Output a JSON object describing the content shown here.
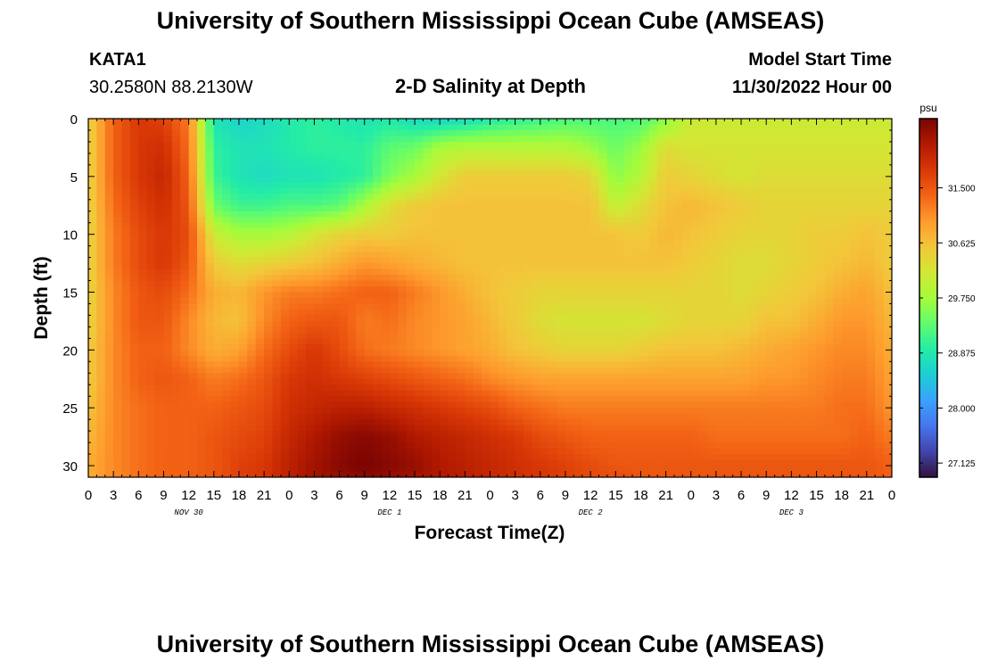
{
  "header": {
    "title": "University of Southern Mississippi Ocean Cube (AMSEAS)",
    "station": "KATA1",
    "coords": "30.2580N  88.2130W",
    "subtitle": "2-D Salinity at Depth",
    "model_start_label": "Model Start Time",
    "model_start_value": "11/30/2022 Hour 00"
  },
  "footer": {
    "title": "University of Southern Mississippi Ocean Cube (AMSEAS)"
  },
  "chart_data": {
    "type": "heatmap",
    "title": "2-D Salinity at Depth",
    "xlabel": "Forecast Time(Z)",
    "ylabel": "Depth (ft)",
    "x_unit": "hours since 11/30/2022 00Z",
    "x_range": [
      0,
      96
    ],
    "x_step": 3,
    "x_tick_labels": [
      "0",
      "3",
      "6",
      "9",
      "12",
      "15",
      "18",
      "21",
      "0",
      "3",
      "6",
      "9",
      "12",
      "15",
      "18",
      "21",
      "0",
      "3",
      "6",
      "9",
      "12",
      "15",
      "18",
      "21",
      "0",
      "3",
      "6",
      "9",
      "12",
      "15",
      "18",
      "21",
      "0"
    ],
    "day_labels": [
      {
        "text": "NOV 30",
        "hour": 12
      },
      {
        "text": "DEC 1",
        "hour": 36
      },
      {
        "text": "DEC 2",
        "hour": 60
      },
      {
        "text": "DEC 3",
        "hour": 84
      }
    ],
    "y_range": [
      0,
      31
    ],
    "y_ticks": [
      0,
      5,
      10,
      15,
      20,
      25,
      30
    ],
    "colorbar": {
      "unit": "psu",
      "ticks": [
        "31.500",
        "30.625",
        "29.750",
        "28.875",
        "28.000",
        "27.125"
      ],
      "range": [
        26.9,
        32.6
      ],
      "colors": [
        "#30123b",
        "#4145ab",
        "#4675ed",
        "#39a2fc",
        "#1bcfd4",
        "#24eca6",
        "#61fc6c",
        "#a4fc3b",
        "#d1e834",
        "#f3c63a",
        "#fe9b2d",
        "#f36315",
        "#d93806",
        "#b11901",
        "#7a0402"
      ]
    },
    "depths": [
      0,
      2.5,
      5,
      7.5,
      10,
      12.5,
      15,
      17.5,
      20,
      22.5,
      25,
      27.5,
      30,
      31
    ],
    "hours": [
      0,
      3,
      6,
      9,
      12,
      15,
      18,
      21,
      24,
      27,
      30,
      33,
      36,
      39,
      42,
      45,
      48,
      51,
      54,
      57,
      60,
      63,
      66,
      69,
      72,
      75,
      78,
      81,
      84,
      87,
      90,
      93,
      96
    ],
    "salinity": [
      [
        30.4,
        31.4,
        31.8,
        31.7,
        31.2,
        28.8,
        28.6,
        28.7,
        28.9,
        29.0,
        28.9,
        28.8,
        28.9,
        28.7,
        28.6,
        28.7,
        28.9,
        29.0,
        29.1,
        29.2,
        29.2,
        29.2,
        29.2,
        29.6,
        30.1,
        30.1,
        30.1,
        30.1,
        30.1,
        30.1,
        30.1,
        30.1,
        30.1
      ],
      [
        30.4,
        31.4,
        31.8,
        31.9,
        31.3,
        29.0,
        28.8,
        28.8,
        28.9,
        29.0,
        29.0,
        29.0,
        29.3,
        29.4,
        29.8,
        29.9,
        29.9,
        29.9,
        29.9,
        29.9,
        29.7,
        29.4,
        29.7,
        30.3,
        30.2,
        30.2,
        30.2,
        30.2,
        30.2,
        30.2,
        30.2,
        30.2,
        30.2
      ],
      [
        30.4,
        31.4,
        31.8,
        32.0,
        31.4,
        29.1,
        28.8,
        28.7,
        28.8,
        28.8,
        28.9,
        29.0,
        29.5,
        29.8,
        30.2,
        30.5,
        30.5,
        30.5,
        30.5,
        30.5,
        30.4,
        29.6,
        29.9,
        30.5,
        30.4,
        30.3,
        30.2,
        30.3,
        30.3,
        30.3,
        30.3,
        30.3,
        30.3
      ],
      [
        30.4,
        31.3,
        31.7,
        31.9,
        31.5,
        29.4,
        29.1,
        29.1,
        29.2,
        29.2,
        29.3,
        29.8,
        30.3,
        30.5,
        30.6,
        30.6,
        30.6,
        30.6,
        30.6,
        30.6,
        30.6,
        30.0,
        30.3,
        30.6,
        30.7,
        30.6,
        30.5,
        30.4,
        30.4,
        30.4,
        30.4,
        30.4,
        30.4
      ],
      [
        30.4,
        31.2,
        31.6,
        31.8,
        31.6,
        30.1,
        29.8,
        29.8,
        29.9,
        30.2,
        30.4,
        30.5,
        30.5,
        30.6,
        30.6,
        30.6,
        30.6,
        30.6,
        30.6,
        30.6,
        30.6,
        30.6,
        30.5,
        30.7,
        30.6,
        30.5,
        30.4,
        30.4,
        30.4,
        30.5,
        30.5,
        30.6,
        30.5
      ],
      [
        30.4,
        31.2,
        31.6,
        31.8,
        31.5,
        30.5,
        30.3,
        30.4,
        30.5,
        30.6,
        30.8,
        31.0,
        30.9,
        30.8,
        30.7,
        30.6,
        30.6,
        30.6,
        30.6,
        30.6,
        30.6,
        30.6,
        30.6,
        30.6,
        30.5,
        30.4,
        30.3,
        30.3,
        30.4,
        30.5,
        30.6,
        30.7,
        30.5
      ],
      [
        30.4,
        31.1,
        31.5,
        31.6,
        31.3,
        30.8,
        30.7,
        31.0,
        31.2,
        31.2,
        31.3,
        31.4,
        31.4,
        31.2,
        31.0,
        30.8,
        30.6,
        30.5,
        30.4,
        30.4,
        30.4,
        30.4,
        30.4,
        30.4,
        30.4,
        30.4,
        30.3,
        30.4,
        30.5,
        30.6,
        30.8,
        30.9,
        30.6
      ],
      [
        30.4,
        31.1,
        31.5,
        31.5,
        31.1,
        30.7,
        30.6,
        31.1,
        31.4,
        31.5,
        31.5,
        31.2,
        31.3,
        31.1,
        31.0,
        30.9,
        30.7,
        30.5,
        30.3,
        30.2,
        30.2,
        30.2,
        30.2,
        30.3,
        30.4,
        30.4,
        30.4,
        30.6,
        30.6,
        30.8,
        31.0,
        31.0,
        30.7
      ],
      [
        30.5,
        31.1,
        31.4,
        31.4,
        31.1,
        30.8,
        30.9,
        31.3,
        31.6,
        31.8,
        31.6,
        31.3,
        31.2,
        31.1,
        31.0,
        30.9,
        30.8,
        30.6,
        30.5,
        30.4,
        30.4,
        30.4,
        30.5,
        30.6,
        30.6,
        30.6,
        30.7,
        30.8,
        30.9,
        31.0,
        31.1,
        31.1,
        30.8
      ],
      [
        30.5,
        31.1,
        31.4,
        31.5,
        31.4,
        31.2,
        31.3,
        31.5,
        31.8,
        31.9,
        31.8,
        31.7,
        31.6,
        31.5,
        31.4,
        31.3,
        31.1,
        31.0,
        30.9,
        30.9,
        30.9,
        30.9,
        30.9,
        30.9,
        30.9,
        30.9,
        30.9,
        31.0,
        31.0,
        31.1,
        31.2,
        31.2,
        30.9
      ],
      [
        30.6,
        31.1,
        31.3,
        31.4,
        31.4,
        31.4,
        31.5,
        31.6,
        31.9,
        32.0,
        32.1,
        32.1,
        32.0,
        31.9,
        31.8,
        31.7,
        31.6,
        31.4,
        31.3,
        31.2,
        31.2,
        31.2,
        31.2,
        31.2,
        31.2,
        31.2,
        31.2,
        31.2,
        31.2,
        31.2,
        31.3,
        31.3,
        31.0
      ],
      [
        30.7,
        31.1,
        31.3,
        31.4,
        31.4,
        31.5,
        31.6,
        31.7,
        32.0,
        32.2,
        32.4,
        32.5,
        32.4,
        32.2,
        32.1,
        32.0,
        31.9,
        31.8,
        31.6,
        31.5,
        31.4,
        31.4,
        31.4,
        31.4,
        31.4,
        31.3,
        31.3,
        31.3,
        31.3,
        31.3,
        31.3,
        31.4,
        31.2
      ],
      [
        30.8,
        31.1,
        31.3,
        31.4,
        31.4,
        31.5,
        31.7,
        31.8,
        32.1,
        32.3,
        32.5,
        32.6,
        32.5,
        32.4,
        32.2,
        32.1,
        32.0,
        31.9,
        31.8,
        31.7,
        31.6,
        31.5,
        31.5,
        31.5,
        31.5,
        31.5,
        31.5,
        31.5,
        31.5,
        31.5,
        31.5,
        31.5,
        31.4
      ],
      [
        30.8,
        31.1,
        31.3,
        31.4,
        31.4,
        31.5,
        31.7,
        31.8,
        32.1,
        32.3,
        32.4,
        32.5,
        32.4,
        32.3,
        32.2,
        32.1,
        32.0,
        31.9,
        31.8,
        31.7,
        31.6,
        31.6,
        31.5,
        31.5,
        31.5,
        31.5,
        31.5,
        31.5,
        31.5,
        31.5,
        31.5,
        31.5,
        31.4
      ]
    ]
  }
}
